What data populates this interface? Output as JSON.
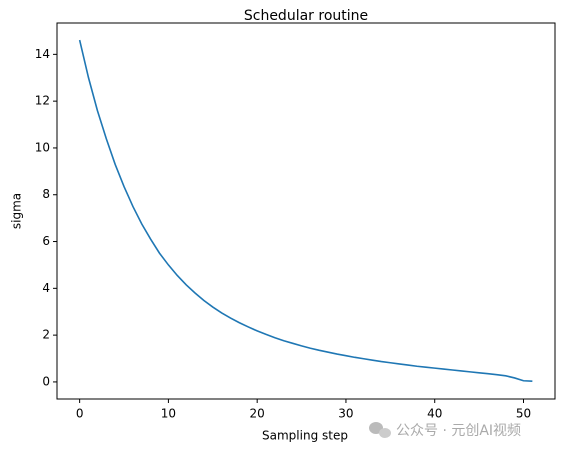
{
  "chart_data": {
    "type": "line",
    "title": "Schedular routine",
    "xlabel": "Sampling step",
    "ylabel": "sigma",
    "x": [
      0,
      1,
      2,
      3,
      4,
      5,
      6,
      7,
      8,
      9,
      10,
      11,
      12,
      13,
      14,
      15,
      16,
      17,
      18,
      19,
      20,
      21,
      22,
      23,
      24,
      25,
      26,
      27,
      28,
      29,
      30,
      31,
      32,
      33,
      34,
      35,
      36,
      37,
      38,
      39,
      40,
      41,
      42,
      43,
      44,
      45,
      46,
      47,
      48,
      49,
      50,
      51
    ],
    "series": [
      {
        "name": "sigma",
        "color": "#1f77b4",
        "values": [
          14.61,
          13.0,
          11.6,
          10.4,
          9.3,
          8.35,
          7.5,
          6.75,
          6.1,
          5.5,
          5.0,
          4.55,
          4.15,
          3.8,
          3.48,
          3.2,
          2.95,
          2.73,
          2.53,
          2.35,
          2.18,
          2.03,
          1.89,
          1.76,
          1.65,
          1.54,
          1.44,
          1.35,
          1.27,
          1.19,
          1.12,
          1.05,
          0.99,
          0.93,
          0.87,
          0.82,
          0.77,
          0.72,
          0.67,
          0.63,
          0.59,
          0.55,
          0.51,
          0.47,
          0.43,
          0.39,
          0.35,
          0.31,
          0.26,
          0.17,
          0.05,
          0.03
        ]
      }
    ],
    "xlim": [
      -2.55,
      53.55
    ],
    "ylim": [
      -0.73,
      15.34
    ],
    "xticks": [
      0,
      10,
      20,
      30,
      40,
      50
    ],
    "yticks": [
      0,
      2,
      4,
      6,
      8,
      10,
      12,
      14
    ],
    "watermark": "公众号 · 元创AI视频"
  }
}
